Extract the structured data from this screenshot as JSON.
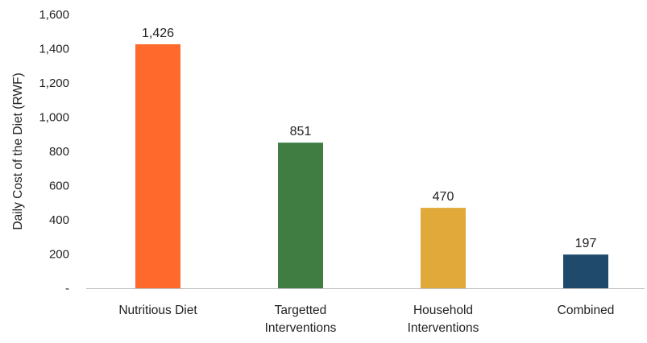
{
  "chart_data": {
    "type": "bar",
    "categories": [
      [
        "Nutritious Diet"
      ],
      [
        "Targetted",
        "Interventions"
      ],
      [
        "Household",
        "Interventions"
      ],
      [
        "Combined"
      ]
    ],
    "values": [
      1426,
      851,
      470,
      197
    ],
    "data_labels": [
      "1,426",
      "851",
      "470",
      "197"
    ],
    "colors": [
      "#FF6A2C",
      "#3F7D43",
      "#E0A93A",
      "#1F4A6B"
    ],
    "title": "",
    "xlabel": "",
    "ylabel": "Daily Cost of the Diet (RWF)",
    "ylim": [
      0,
      1600
    ],
    "y_ticks": [
      0,
      200,
      400,
      600,
      800,
      1000,
      1200,
      1400,
      1600
    ],
    "y_tick_labels": [
      "-",
      "200",
      "400",
      "600",
      "800",
      "1,000",
      "1,200",
      "1,400",
      "1,600"
    ],
    "grid": false,
    "legend": "none"
  }
}
